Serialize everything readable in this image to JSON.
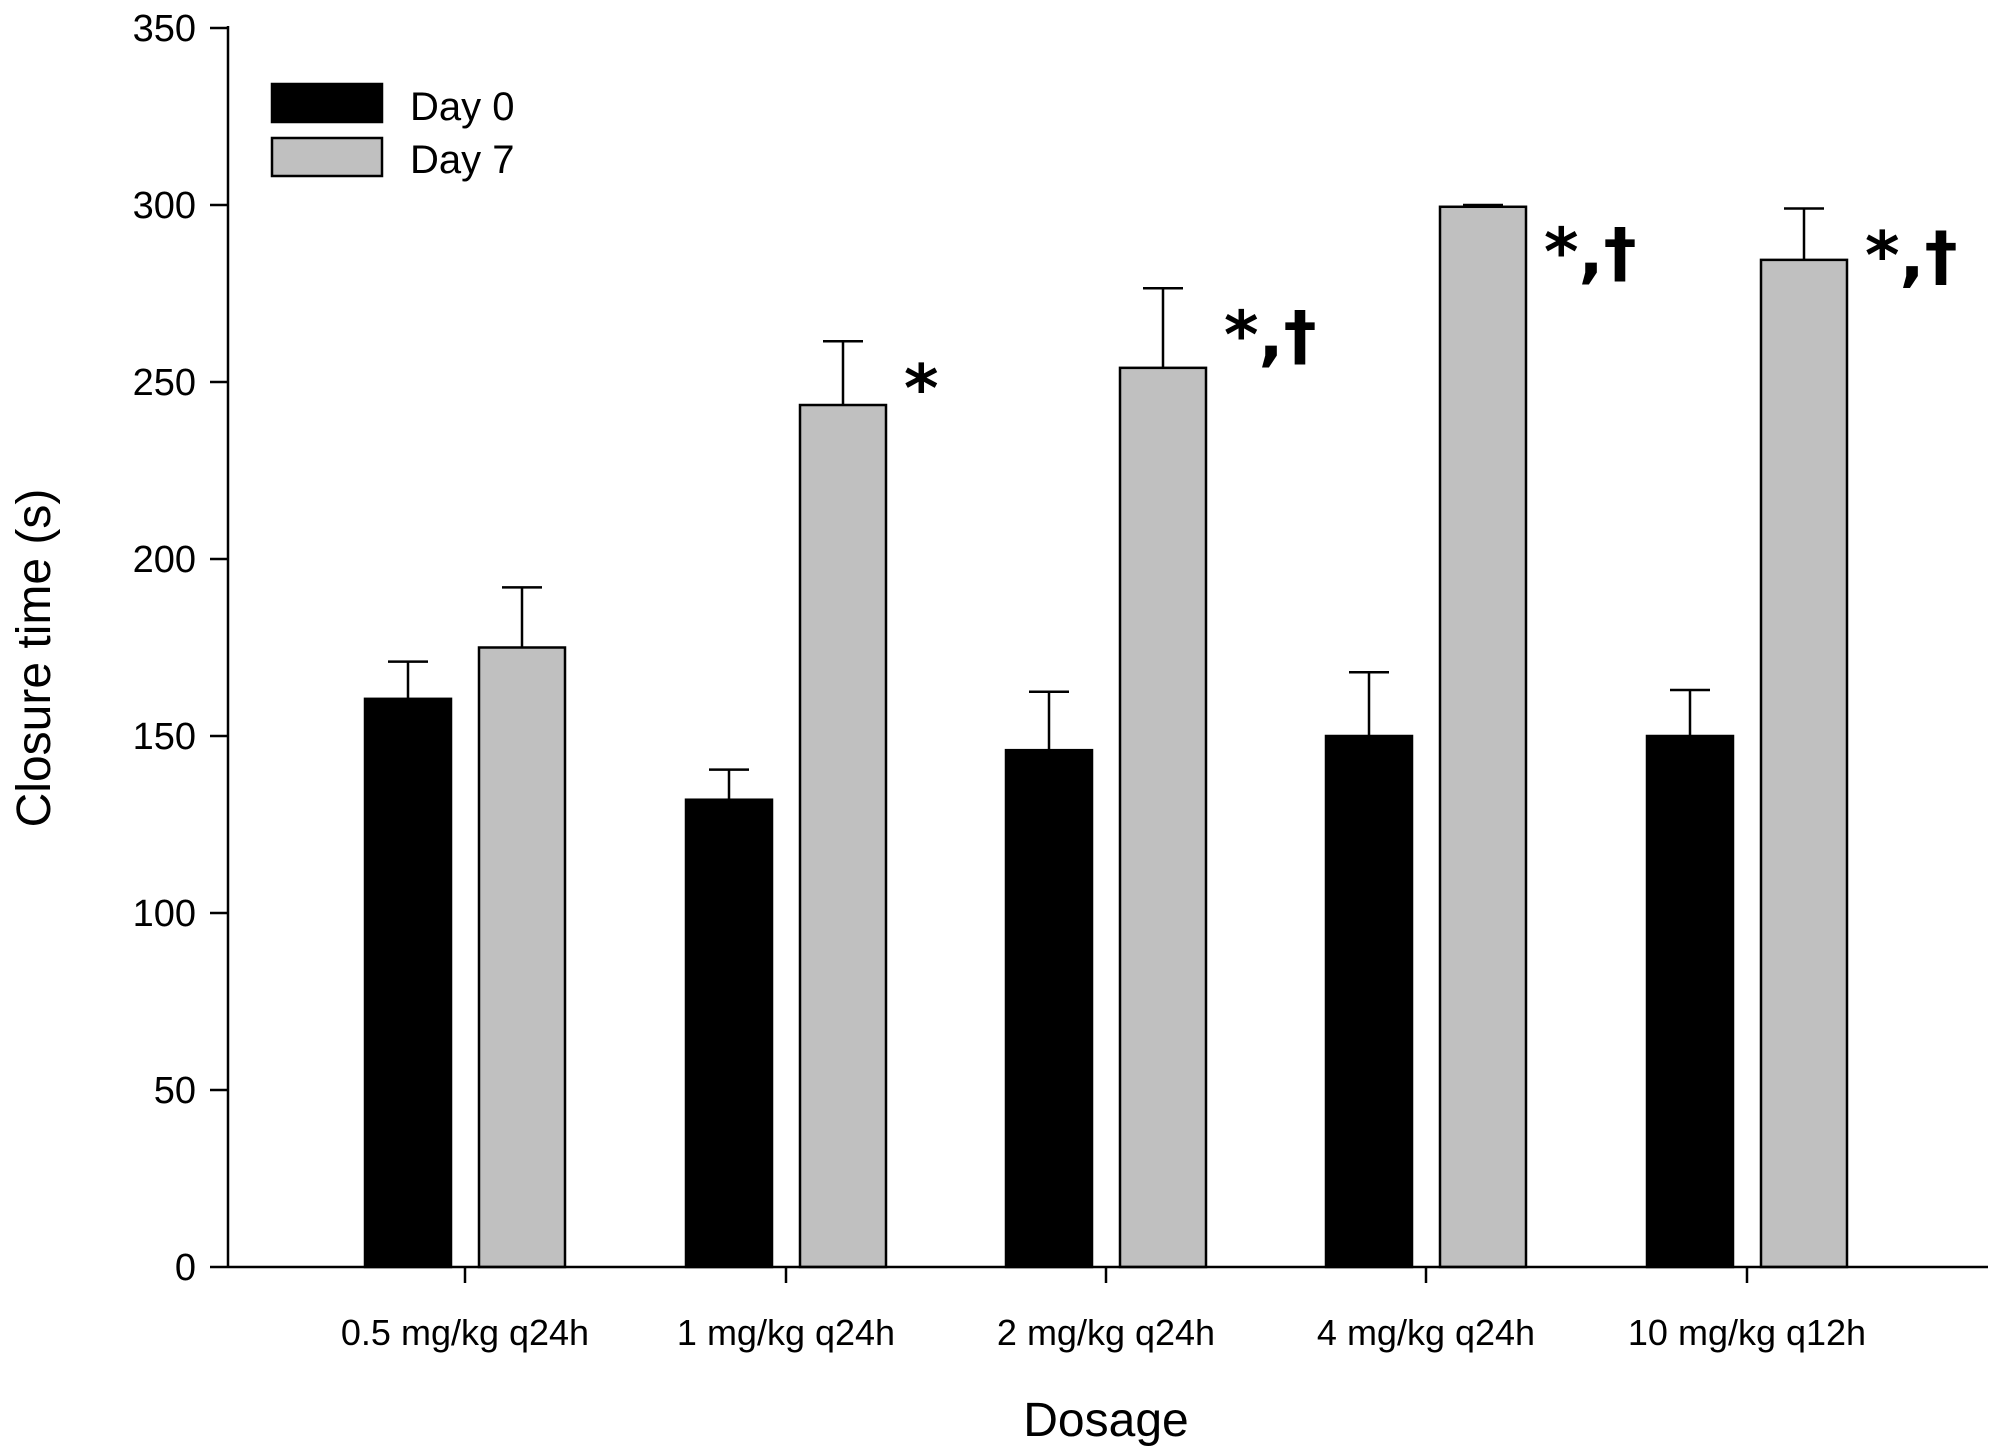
{
  "chart_data": {
    "type": "bar",
    "title": "",
    "xlabel": "Dosage",
    "ylabel": "Closure time (s)",
    "ylim": [
      0,
      350
    ],
    "yticks": [
      0,
      50,
      100,
      150,
      200,
      250,
      300,
      350
    ],
    "categories": [
      "0.5 mg/kg q24h",
      "1 mg/kg q24h",
      "2 mg/kg q24h",
      "4 mg/kg q24h",
      "10 mg/kg q12h"
    ],
    "series": [
      {
        "name": "Day 0",
        "color": "#000000",
        "values": [
          160.5,
          132,
          146,
          150,
          150
        ],
        "errors": [
          10.5,
          8.5,
          16.5,
          18,
          13
        ]
      },
      {
        "name": "Day 7",
        "color": "#c0c0c0",
        "values": [
          175,
          243.5,
          254,
          299.5,
          284.5
        ],
        "errors": [
          17,
          18,
          22.5,
          0.5,
          14.5
        ]
      }
    ],
    "annotations": [
      "",
      "*",
      "*,†",
      "*,†",
      "*,†"
    ],
    "legend": "top-left",
    "grid": false
  }
}
